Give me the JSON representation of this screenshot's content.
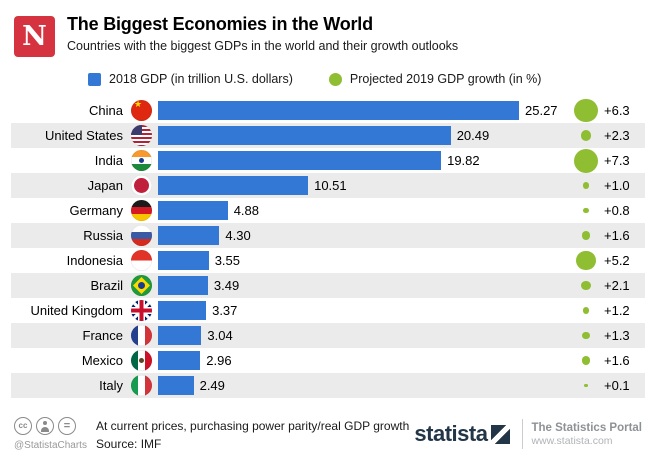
{
  "header": {
    "brand_letter": "N",
    "title": "The Biggest Economies in the World",
    "subtitle": "Countries with the biggest GDPs in the world and their growth outlooks"
  },
  "legend": {
    "gdp_label": "2018 GDP (in trillion U.S. dollars)",
    "growth_label": "Projected 2019 GDP growth (in %)"
  },
  "chart_data": {
    "type": "bar",
    "orientation": "horizontal",
    "value_axis_max": 25.27,
    "grid": false,
    "legend_position": "top",
    "series": [
      {
        "name": "2018 GDP (in trillion U.S. dollars)",
        "color": "#3378d4",
        "mark": "bar"
      },
      {
        "name": "Projected 2019 GDP growth (in %)",
        "color": "#8fbe33",
        "mark": "sized-dot"
      }
    ],
    "rows": [
      {
        "country": "China",
        "flag": "china",
        "gdp": 25.27,
        "gdp_label": "25.27",
        "growth": 6.3,
        "growth_label": "+6.3"
      },
      {
        "country": "United States",
        "flag": "usa",
        "gdp": 20.49,
        "gdp_label": "20.49",
        "growth": 2.3,
        "growth_label": "+2.3"
      },
      {
        "country": "India",
        "flag": "india",
        "gdp": 19.82,
        "gdp_label": "19.82",
        "growth": 7.3,
        "growth_label": "+7.3"
      },
      {
        "country": "Japan",
        "flag": "japan",
        "gdp": 10.51,
        "gdp_label": "10.51",
        "growth": 1.0,
        "growth_label": "+1.0"
      },
      {
        "country": "Germany",
        "flag": "germany",
        "gdp": 4.88,
        "gdp_label": "4.88",
        "growth": 0.8,
        "growth_label": "+0.8"
      },
      {
        "country": "Russia",
        "flag": "russia",
        "gdp": 4.3,
        "gdp_label": "4.30",
        "growth": 1.6,
        "growth_label": "+1.6"
      },
      {
        "country": "Indonesia",
        "flag": "indonesia",
        "gdp": 3.55,
        "gdp_label": "3.55",
        "growth": 5.2,
        "growth_label": "+5.2"
      },
      {
        "country": "Brazil",
        "flag": "brazil",
        "gdp": 3.49,
        "gdp_label": "3.49",
        "growth": 2.1,
        "growth_label": "+2.1"
      },
      {
        "country": "United Kingdom",
        "flag": "uk",
        "gdp": 3.37,
        "gdp_label": "3.37",
        "growth": 1.2,
        "growth_label": "+1.2"
      },
      {
        "country": "France",
        "flag": "france",
        "gdp": 3.04,
        "gdp_label": "3.04",
        "growth": 1.3,
        "growth_label": "+1.3"
      },
      {
        "country": "Mexico",
        "flag": "mexico",
        "gdp": 2.96,
        "gdp_label": "2.96",
        "growth": 1.6,
        "growth_label": "+1.6"
      },
      {
        "country": "Italy",
        "flag": "italy",
        "gdp": 2.49,
        "gdp_label": "2.49",
        "growth": 0.1,
        "growth_label": "+0.1"
      }
    ]
  },
  "footer": {
    "license_icons": [
      "cc-icon",
      "attribution-person-icon",
      "no-derivatives-icon"
    ],
    "cc_text": "cc",
    "nd_text": "=",
    "handle": "@StatistaCharts",
    "note_line1": "At current prices, purchasing power parity/real GDP growth",
    "note_line2": "Source: IMF",
    "brand": "statista",
    "portal_line1": "The Statistics Portal",
    "portal_line2": "www.statista.com"
  },
  "colors": {
    "bar_blue": "#3378d4",
    "growth_green": "#8fbe33",
    "row_stripe": "#ebebeb",
    "newsweek_red": "#d5333f",
    "statista_navy": "#223648"
  }
}
